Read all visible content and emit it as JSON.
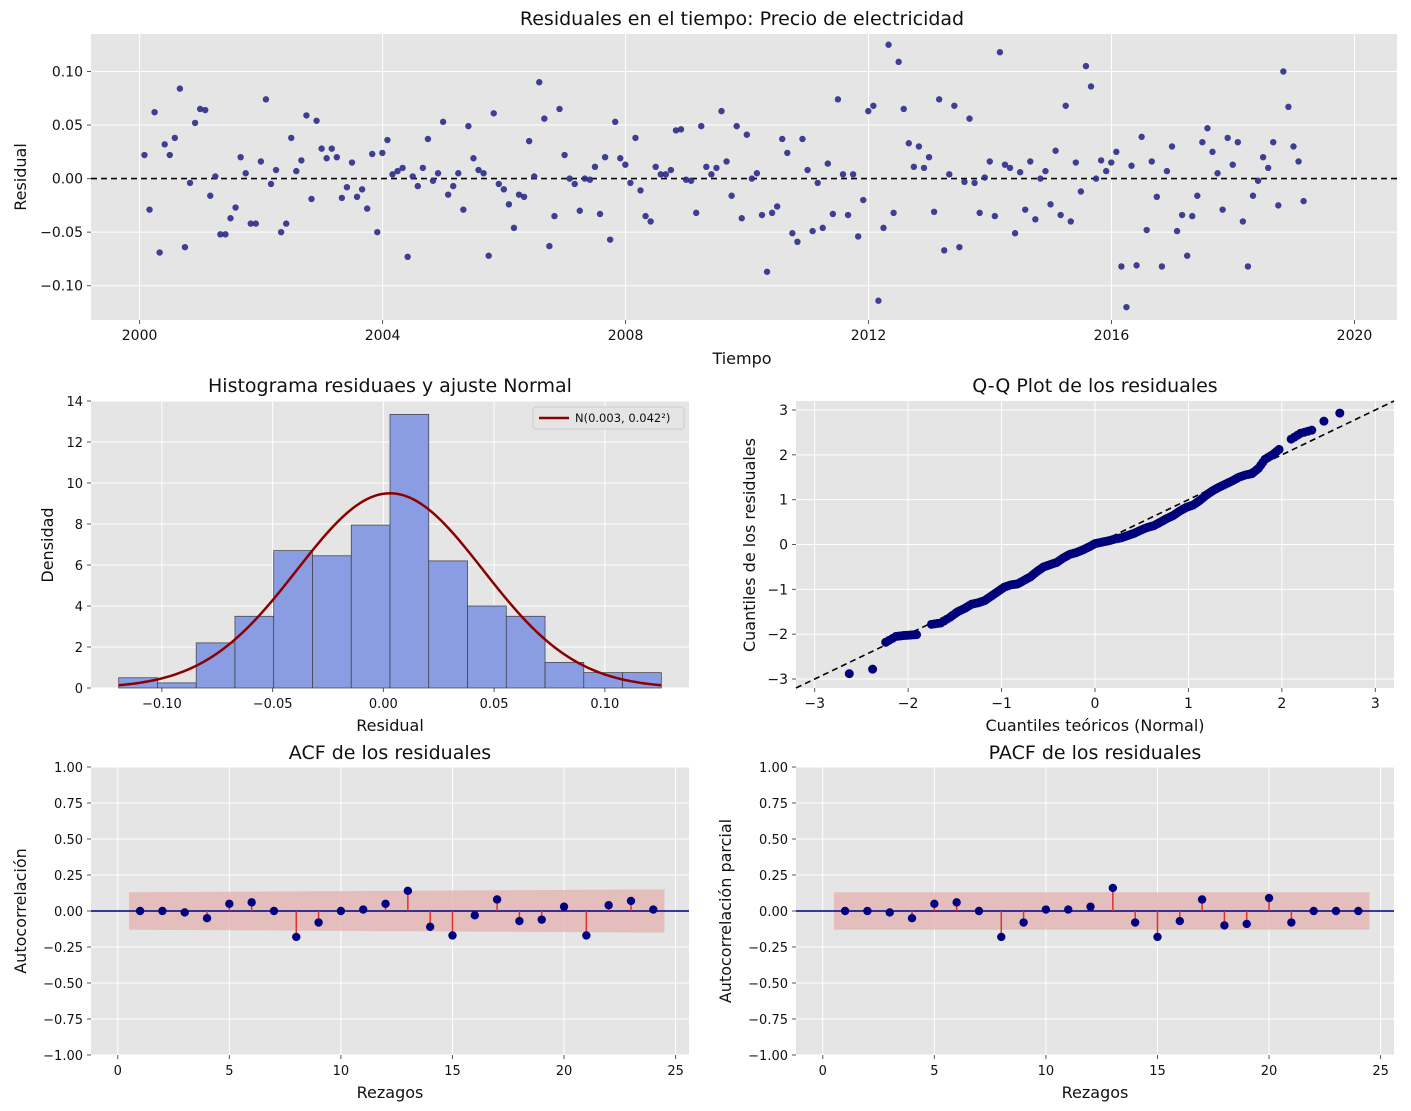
{
  "chart_data": [
    {
      "id": "resid",
      "type": "scatter",
      "title": "Residuales en el tiempo: Precio de electricidad",
      "xlabel": "Tiempo",
      "ylabel": "Residual",
      "xlim": [
        1999.2,
        2020.7
      ],
      "ylim": [
        -0.132,
        0.135
      ],
      "xticks": [
        2000,
        2004,
        2008,
        2012,
        2016,
        2020
      ],
      "xtick_labels": [
        "2000",
        "2004",
        "2008",
        "2012",
        "2016",
        "2020"
      ],
      "yticks": [
        -0.1,
        -0.05,
        0,
        0.05,
        0.1
      ],
      "ytick_labels": [
        "−0.10",
        "−0.05",
        "0.00",
        "0.05",
        "0.10"
      ],
      "hline": 0,
      "colors": {
        "points": "#2b2b8a",
        "hline": "#000000"
      },
      "x_start": 2000.08,
      "x_step": 0.08333,
      "y": [
        0.022,
        -0.029,
        0.062,
        -0.069,
        0.032,
        0.022,
        0.038,
        0.084,
        -0.064,
        -0.004,
        0.052,
        0.065,
        0.064,
        -0.016,
        0.002,
        -0.052,
        -0.052,
        -0.037,
        -0.027,
        0.02,
        0.005,
        -0.042,
        -0.042,
        0.016,
        0.074,
        -0.005,
        0.008,
        -0.05,
        -0.042,
        0.038,
        0.007,
        0.017,
        0.059,
        -0.019,
        0.054,
        0.028,
        0.019,
        0.028,
        0.02,
        -0.018,
        -0.008,
        0.015,
        -0.017,
        -0.01,
        -0.028,
        0.023,
        -0.05,
        0.024,
        0.036,
        0.004,
        0.007,
        0.01,
        -0.073,
        0.002,
        -0.007,
        0.01,
        0.037,
        -0.002,
        0.005,
        0.053,
        -0.015,
        -0.007,
        0.005,
        -0.029,
        0.049,
        0.019,
        0.008,
        0.005,
        -0.072,
        0.061,
        -0.005,
        -0.01,
        -0.024,
        -0.046,
        -0.015,
        -0.017,
        0.035,
        0.002,
        0.09,
        0.056,
        -0.063,
        -0.035,
        0.065,
        0.022,
        0.0,
        -0.005,
        -0.03,
        0.0,
        -0.001,
        0.011,
        -0.033,
        0.02,
        -0.057,
        0.053,
        0.019,
        0.013,
        -0.004,
        0.038,
        -0.011,
        -0.035,
        -0.04,
        0.011,
        0.004,
        0.004,
        0.008,
        0.045,
        0.046,
        -0.001,
        -0.002,
        -0.032,
        0.049,
        0.011,
        0.004,
        0.01,
        0.063,
        0.016,
        -0.016,
        0.049,
        -0.037,
        0.041,
        0.0,
        0.005,
        -0.034,
        -0.087,
        -0.032,
        -0.026,
        0.037,
        0.024,
        -0.051,
        -0.059,
        0.037,
        0.008,
        -0.049,
        -0.004,
        -0.046,
        0.014,
        -0.033,
        0.074,
        0.004,
        -0.034,
        0.004,
        -0.054,
        -0.02,
        0.063,
        0.068,
        -0.114,
        -0.046,
        0.125,
        -0.032,
        0.109,
        0.065,
        0.033,
        0.011,
        0.03,
        0.01,
        0.02,
        -0.031,
        0.074,
        -0.067,
        0.004,
        0.068,
        -0.064,
        -0.003,
        0.056,
        -0.004,
        -0.032,
        0.001,
        0.016,
        -0.035,
        0.118,
        0.013,
        0.01,
        -0.051,
        0.006,
        -0.029,
        0.016,
        -0.038,
        0.0,
        0.007,
        -0.024,
        0.026,
        -0.034,
        0.068,
        -0.04,
        0.015,
        -0.012,
        0.105,
        0.086,
        0.0,
        0.017,
        0.007,
        0.015,
        0.025,
        -0.082,
        -0.12,
        0.012,
        -0.081,
        0.039,
        -0.048,
        0.016,
        -0.017,
        -0.082,
        0.007,
        0.03,
        -0.049,
        -0.034,
        -0.072,
        -0.035,
        -0.016,
        0.034,
        0.047,
        0.025,
        0.005,
        -0.029,
        0.038,
        0.013,
        0.034,
        -0.04,
        -0.082,
        -0.016,
        -0.002,
        0.02,
        0.01,
        0.034,
        -0.025,
        0.1,
        0.067,
        0.03,
        0.016,
        -0.021
      ]
    },
    {
      "id": "hist",
      "type": "bar",
      "title": "Histograma residuaes y ajuste Normal",
      "xlabel": "Residual",
      "ylabel": "Densidad",
      "xlim": [
        -0.132,
        0.138
      ],
      "ylim": [
        0,
        14
      ],
      "xticks": [
        -0.1,
        -0.05,
        0,
        0.05,
        0.1
      ],
      "xtick_labels": [
        "−0.10",
        "−0.05",
        "0.00",
        "0.05",
        "0.10"
      ],
      "yticks": [
        0,
        2,
        4,
        6,
        8,
        10,
        12,
        14
      ],
      "ytick_labels": [
        "0",
        "2",
        "4",
        "6",
        "8",
        "10",
        "12",
        "14"
      ],
      "bin_edges": [
        -0.1195,
        -0.102,
        -0.0845,
        -0.067,
        -0.0495,
        -0.032,
        -0.0145,
        0.003,
        0.0205,
        0.038,
        0.0555,
        0.073,
        0.0905,
        0.108,
        0.1255
      ],
      "values": [
        0.5,
        0.25,
        2.2,
        3.5,
        6.7,
        6.45,
        7.95,
        13.35,
        6.2,
        4.0,
        3.5,
        1.25,
        0.75,
        0.75
      ],
      "normal_fit": {
        "mean": 0.003,
        "sd": 0.042
      },
      "legend": "N(0.003, 0.042²)",
      "colors": {
        "bars": "#8a9de3",
        "bar_edge": "#3a3a3a",
        "curve": "#8b0000"
      }
    },
    {
      "id": "qq",
      "type": "scatter",
      "title": "Q-Q Plot de los residuales",
      "xlabel": "Cuantiles teóricos (Normal)",
      "ylabel": "Cuantiles de los residuales",
      "xlim": [
        -3.2,
        3.2
      ],
      "ylim": [
        -3.2,
        3.2
      ],
      "xticks": [
        -3,
        -2,
        -1,
        0,
        1,
        2,
        3
      ],
      "xtick_labels": [
        "−3",
        "−2",
        "−1",
        "0",
        "1",
        "2",
        "3"
      ],
      "yticks": [
        -3,
        -2,
        -1,
        0,
        1,
        2,
        3
      ],
      "ytick_labels": [
        "−3",
        "−2",
        "−1",
        "0",
        "1",
        "2",
        "3"
      ],
      "reference_line": [
        [
          -3.2,
          -3.2
        ],
        [
          3.2,
          3.2
        ]
      ],
      "points": [
        [
          -2.63,
          -2.88
        ],
        [
          -2.38,
          -2.78
        ],
        [
          -2.24,
          -2.18
        ],
        [
          -2.13,
          -2.05
        ],
        [
          -2.05,
          -2.03
        ],
        [
          -1.98,
          -2.02
        ],
        [
          -1.91,
          -2.01
        ],
        [
          -1.75,
          -1.78
        ],
        [
          -1.65,
          -1.75
        ],
        [
          -1.55,
          -1.62
        ],
        [
          -1.47,
          -1.5
        ],
        [
          -1.39,
          -1.42
        ],
        [
          -1.32,
          -1.33
        ],
        [
          -1.25,
          -1.3
        ],
        [
          -1.18,
          -1.25
        ],
        [
          -1.11,
          -1.15
        ],
        [
          -1.04,
          -1.05
        ],
        [
          -0.97,
          -0.95
        ],
        [
          -0.9,
          -0.9
        ],
        [
          -0.83,
          -0.88
        ],
        [
          -0.76,
          -0.8
        ],
        [
          -0.69,
          -0.72
        ],
        [
          -0.62,
          -0.6
        ],
        [
          -0.55,
          -0.5
        ],
        [
          -0.48,
          -0.45
        ],
        [
          -0.41,
          -0.4
        ],
        [
          -0.34,
          -0.3
        ],
        [
          -0.27,
          -0.22
        ],
        [
          -0.2,
          -0.18
        ],
        [
          -0.13,
          -0.12
        ],
        [
          -0.06,
          -0.05
        ],
        [
          0.0,
          0.02
        ],
        [
          0.07,
          0.05
        ],
        [
          0.14,
          0.08
        ],
        [
          0.21,
          0.12
        ],
        [
          0.28,
          0.15
        ],
        [
          0.35,
          0.2
        ],
        [
          0.42,
          0.25
        ],
        [
          0.49,
          0.32
        ],
        [
          0.56,
          0.38
        ],
        [
          0.63,
          0.42
        ],
        [
          0.7,
          0.5
        ],
        [
          0.77,
          0.58
        ],
        [
          0.84,
          0.65
        ],
        [
          0.91,
          0.75
        ],
        [
          0.98,
          0.83
        ],
        [
          1.05,
          0.88
        ],
        [
          1.12,
          0.98
        ],
        [
          1.19,
          1.1
        ],
        [
          1.26,
          1.2
        ],
        [
          1.33,
          1.28
        ],
        [
          1.4,
          1.35
        ],
        [
          1.47,
          1.42
        ],
        [
          1.54,
          1.5
        ],
        [
          1.61,
          1.55
        ],
        [
          1.68,
          1.58
        ],
        [
          1.75,
          1.7
        ],
        [
          1.82,
          1.9
        ],
        [
          1.9,
          2.0
        ],
        [
          1.97,
          2.12
        ],
        [
          2.1,
          2.35
        ],
        [
          2.2,
          2.48
        ],
        [
          2.32,
          2.55
        ],
        [
          2.45,
          2.75
        ],
        [
          2.62,
          2.93
        ]
      ],
      "colors": {
        "points": "#00007a",
        "line": "#000000"
      }
    },
    {
      "id": "acf",
      "type": "scatter",
      "title": "ACF de los residuales",
      "xlabel": "Rezagos",
      "ylabel": "Autocorrelación",
      "xlim": [
        -1.2,
        25.6
      ],
      "ylim": [
        -1,
        1
      ],
      "xticks": [
        0,
        5,
        10,
        15,
        20,
        25
      ],
      "xtick_labels": [
        "0",
        "5",
        "10",
        "15",
        "20",
        "25"
      ],
      "yticks": [
        -1,
        -0.75,
        -0.5,
        -0.25,
        0,
        0.25,
        0.5,
        0.75,
        1
      ],
      "ytick_labels": [
        "−1.00",
        "−0.75",
        "−0.50",
        "−0.25",
        "0.00",
        "0.25",
        "0.50",
        "0.75",
        "1.00"
      ],
      "lags": [
        1,
        2,
        3,
        4,
        5,
        6,
        7,
        8,
        9,
        10,
        11,
        12,
        13,
        14,
        15,
        16,
        17,
        18,
        19,
        20,
        21,
        22,
        23,
        24
      ],
      "values": [
        0.0,
        0.0,
        -0.01,
        -0.05,
        0.05,
        0.06,
        0.0,
        -0.18,
        -0.08,
        0.0,
        0.01,
        0.05,
        0.14,
        -0.11,
        -0.17,
        -0.03,
        0.08,
        -0.07,
        -0.06,
        0.03,
        -0.17,
        0.04,
        0.07,
        0.01
      ],
      "conf_band": {
        "x_from": 0.5,
        "x_to": 24.5,
        "low_start": -0.13,
        "low_end": -0.15,
        "high_start": 0.13,
        "high_end": 0.15
      },
      "colors": {
        "points": "#000080",
        "stems": "#e03030",
        "band": "#e3b7b5",
        "hline": "#000080"
      }
    },
    {
      "id": "pacf",
      "type": "scatter",
      "title": "PACF de los residuales",
      "xlabel": "Rezagos",
      "ylabel": "Autocorrelación parcial",
      "xlim": [
        -1.2,
        25.6
      ],
      "ylim": [
        -1,
        1
      ],
      "xticks": [
        0,
        5,
        10,
        15,
        20,
        25
      ],
      "xtick_labels": [
        "0",
        "5",
        "10",
        "15",
        "20",
        "25"
      ],
      "yticks": [
        -1,
        -0.75,
        -0.5,
        -0.25,
        0,
        0.25,
        0.5,
        0.75,
        1
      ],
      "ytick_labels": [
        "−1.00",
        "−0.75",
        "−0.50",
        "−0.25",
        "0.00",
        "0.25",
        "0.50",
        "0.75",
        "1.00"
      ],
      "lags": [
        1,
        2,
        3,
        4,
        5,
        6,
        7,
        8,
        9,
        10,
        11,
        12,
        13,
        14,
        15,
        16,
        17,
        18,
        19,
        20,
        21,
        22,
        23,
        24
      ],
      "values": [
        0.0,
        0.0,
        -0.01,
        -0.05,
        0.05,
        0.06,
        0.0,
        -0.18,
        -0.08,
        0.01,
        0.01,
        0.03,
        0.16,
        -0.08,
        -0.18,
        -0.07,
        0.08,
        -0.1,
        -0.09,
        0.09,
        -0.08,
        0.0,
        0.0,
        0.0
      ],
      "conf_band": {
        "x_from": 0.5,
        "x_to": 24.5,
        "low_start": -0.13,
        "low_end": -0.13,
        "high_start": 0.13,
        "high_end": 0.13
      },
      "colors": {
        "points": "#000080",
        "stems": "#e03030",
        "band": "#e3b7b5",
        "hline": "#000080"
      }
    }
  ]
}
